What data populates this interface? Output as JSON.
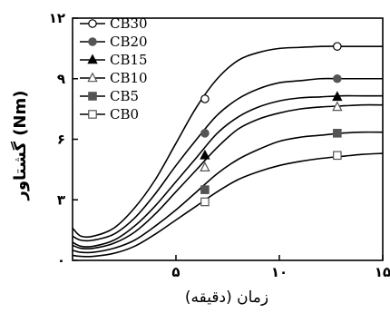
{
  "chart_data": {
    "type": "line",
    "xlabel": "زمان (دقیقه)",
    "ylabel": "(Nm) گشتاور",
    "xlim": [
      0,
      15
    ],
    "ylim": [
      0,
      12
    ],
    "x_ticks": [
      {
        "value": 5,
        "label": "۵"
      },
      {
        "value": 10,
        "label": "۱۰"
      },
      {
        "value": 15,
        "label": "۱۵"
      }
    ],
    "y_ticks": [
      {
        "value": 0,
        "label": "۰"
      },
      {
        "value": 3,
        "label": "۳"
      },
      {
        "value": 6,
        "label": "۶"
      },
      {
        "value": 9,
        "label": "۹"
      },
      {
        "value": 12,
        "label": "۱۲"
      }
    ],
    "legend_position": "top-left",
    "series": [
      {
        "name": "CB30",
        "marker": "circle-open",
        "color": "#000000",
        "x": [
          0,
          0.4,
          1,
          2,
          3,
          4,
          5,
          6,
          7,
          8,
          9,
          10,
          11,
          12,
          13,
          14,
          15
        ],
        "y": [
          1.6,
          1.2,
          1.2,
          1.6,
          2.6,
          4.0,
          5.8,
          7.6,
          9.0,
          9.9,
          10.3,
          10.5,
          10.55,
          10.6,
          10.6,
          10.6,
          10.6
        ],
        "markers": [
          [
            6.4,
            8.0
          ],
          [
            12.8,
            10.6
          ]
        ]
      },
      {
        "name": "CB20",
        "marker": "circle-filled",
        "color": "#555555",
        "x": [
          0,
          0.4,
          1,
          2,
          3,
          4,
          5,
          6,
          7,
          8,
          9,
          10,
          11,
          12,
          13,
          14,
          15
        ],
        "y": [
          1.2,
          1.0,
          1.0,
          1.3,
          2.1,
          3.3,
          4.7,
          6.0,
          7.2,
          8.0,
          8.5,
          8.8,
          8.9,
          9.0,
          9.0,
          9.0,
          9.0
        ],
        "markers": [
          [
            6.4,
            6.3
          ],
          [
            12.8,
            9.0
          ]
        ]
      },
      {
        "name": "CB15",
        "marker": "triangle-filled",
        "color": "#000000",
        "x": [
          0,
          0.4,
          1,
          2,
          3,
          4,
          5,
          6,
          7,
          8,
          9,
          10,
          11,
          12,
          13,
          14,
          15
        ],
        "y": [
          0.9,
          0.7,
          0.7,
          1.0,
          1.7,
          2.7,
          3.9,
          5.1,
          6.3,
          7.1,
          7.6,
          7.9,
          8.05,
          8.1,
          8.15,
          8.15,
          8.15
        ],
        "markers": [
          [
            6.4,
            5.2
          ],
          [
            12.8,
            8.1
          ]
        ]
      },
      {
        "name": "CB10",
        "marker": "triangle-open",
        "color": "#555555",
        "x": [
          0,
          0.4,
          1,
          2,
          3,
          4,
          5,
          6,
          7,
          8,
          9,
          10,
          11,
          12,
          13,
          14,
          15
        ],
        "y": [
          0.75,
          0.6,
          0.6,
          0.85,
          1.4,
          2.3,
          3.4,
          4.5,
          5.6,
          6.5,
          7.0,
          7.3,
          7.5,
          7.6,
          7.65,
          7.7,
          7.7
        ],
        "markers": [
          [
            6.4,
            4.6
          ],
          [
            12.8,
            7.6
          ]
        ]
      },
      {
        "name": "CB5",
        "marker": "square-filled",
        "color": "#555555",
        "x": [
          0,
          0.4,
          1,
          2,
          3,
          4,
          5,
          6,
          7,
          8,
          9,
          10,
          11,
          12,
          13,
          14,
          15
        ],
        "y": [
          0.5,
          0.4,
          0.4,
          0.6,
          1.0,
          1.7,
          2.5,
          3.4,
          4.3,
          5.0,
          5.5,
          5.9,
          6.1,
          6.2,
          6.3,
          6.35,
          6.35
        ],
        "markers": [
          [
            6.4,
            3.5
          ],
          [
            12.8,
            6.3
          ]
        ]
      },
      {
        "name": "CB0",
        "marker": "square-open",
        "color": "#555555",
        "x": [
          0,
          0.4,
          1,
          2,
          3,
          4,
          5,
          6,
          7,
          8,
          9,
          10,
          11,
          12,
          13,
          14,
          15
        ],
        "y": [
          0.25,
          0.2,
          0.2,
          0.35,
          0.7,
          1.3,
          2.0,
          2.7,
          3.4,
          4.0,
          4.4,
          4.7,
          4.9,
          5.05,
          5.15,
          5.25,
          5.3
        ],
        "markers": [
          [
            6.4,
            2.9
          ],
          [
            12.8,
            5.2
          ]
        ]
      }
    ]
  }
}
